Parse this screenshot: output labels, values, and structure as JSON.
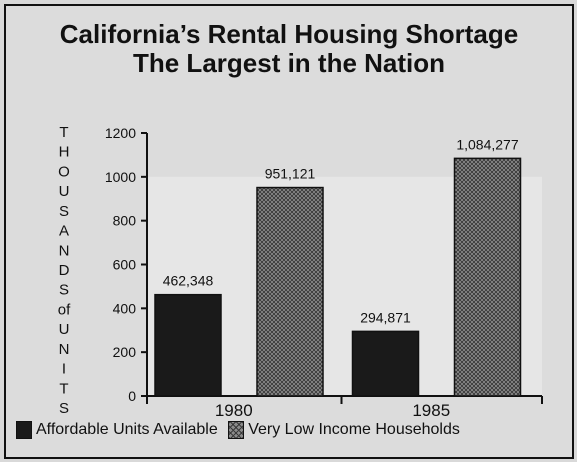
{
  "title_lines": [
    "California’s Rental Housing Shortage",
    "The Largest in the Nation"
  ],
  "ylabel_letters": [
    "T",
    "H",
    "O",
    "U",
    "S",
    "A",
    "N",
    "D",
    "S",
    "of",
    "U",
    "N",
    "I",
    "T",
    "S"
  ],
  "legend": [
    {
      "label": "Affordable Units Available",
      "swatch": "solid"
    },
    {
      "label": "Very Low Income Households",
      "swatch": "hatch"
    }
  ],
  "chart_data": {
    "type": "bar",
    "title": "California’s Rental Housing Shortage The Largest in the Nation",
    "ylabel": "THOUSANDS of UNITS",
    "xlabel": "",
    "categories": [
      "1980",
      "1985"
    ],
    "series": [
      {
        "name": "Affordable Units Available",
        "values": [
          462.348,
          294.871
        ],
        "labels": [
          "462,348",
          "294,871"
        ],
        "color": "#1a1a1a"
      },
      {
        "name": "Very Low Income Households",
        "values": [
          951.121,
          1084.277
        ],
        "labels": [
          "951,121",
          "1,084,277"
        ],
        "color": "#8a8a8a"
      }
    ],
    "yticks": [
      0,
      200,
      400,
      600,
      800,
      1000,
      1200
    ],
    "ylim": [
      0,
      1200
    ],
    "legend_position": "bottom",
    "grid": false
  }
}
